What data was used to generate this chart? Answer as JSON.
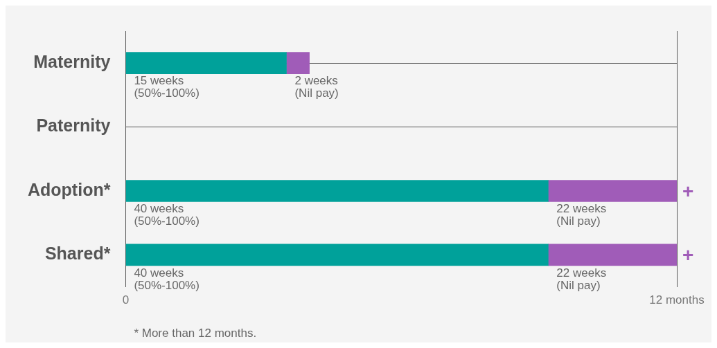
{
  "chart_data": {
    "type": "bar",
    "orientation": "horizontal",
    "stacked": true,
    "categories": [
      "Maternity",
      "Paternity",
      "Adoption*",
      "Shared*"
    ],
    "series": [
      {
        "color": "#00a19a",
        "values": [
          3.5,
          null,
          9.2,
          9.2
        ]
      },
      {
        "color": "#a05cb8",
        "values": [
          0.5,
          null,
          2.8,
          2.8
        ]
      }
    ],
    "xlim": [
      0,
      12
    ],
    "xticks": [
      0,
      {
        "value": 12,
        "label": "12 months"
      }
    ],
    "grid": true,
    "legend": false,
    "annotations": [
      {
        "text": "15 weeks\n(50%-100%)",
        "x": 0,
        "y": "Maternity"
      },
      {
        "text": "2 weeks\n(Nil pay)",
        "x": 3.5,
        "y": "Maternity"
      },
      {
        "text": "40 weeks\n(50%-100%)",
        "x": 0,
        "y": "Adoption*"
      },
      {
        "text": "22 weeks\n(Nil pay)",
        "x": 9.2,
        "y": "Adoption*"
      },
      {
        "text": "+",
        "x": 12,
        "y": "Adoption*"
      },
      {
        "text": "40 weeks\n(50%-100%)",
        "x": 0,
        "y": "Shared*"
      },
      {
        "text": "22 weeks\n(Nil pay)",
        "x": 9.2,
        "y": "Shared*"
      },
      {
        "text": "+",
        "x": 12,
        "y": "Shared*"
      },
      "* More than 12 months."
    ]
  }
}
